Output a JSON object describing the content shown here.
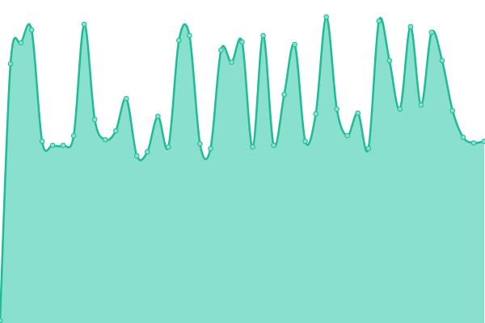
{
  "chart_data": {
    "type": "area",
    "series": [
      {
        "color": "#1fbb94",
        "fill": "#8ae0cf",
        "values": [
          3,
          321,
          347,
          363,
          225,
          220,
          220,
          232,
          370,
          252,
          227,
          238,
          278,
          207,
          212,
          256,
          218,
          350,
          356,
          222,
          216,
          338,
          323,
          348,
          218,
          356,
          220,
          283,
          345,
          225,
          259,
          379,
          265,
          232,
          260,
          216,
          374,
          325,
          265,
          367,
          270,
          360,
          325,
          263,
          230,
          223,
          225
        ]
      }
    ],
    "ylim": [
      0,
      400
    ]
  }
}
